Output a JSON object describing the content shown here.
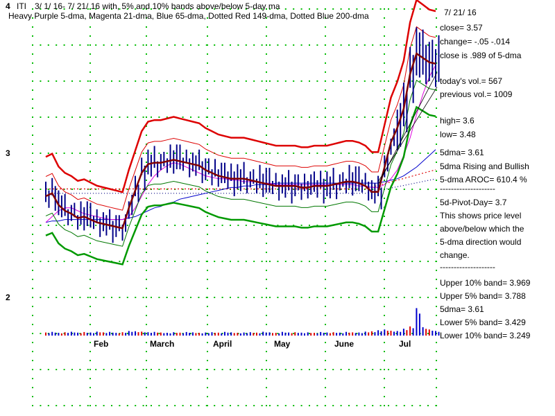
{
  "chart_data": {
    "type": "line",
    "ticker": "ITI",
    "title": "3/ 1/ 16- 7/ 21/ 16 with, 5% and 10% bands above/below 5-day ma",
    "subtitle": "Heavy Purple 5-dma, Magenta 21-dma, Blue 65-dma, Dotted Red 149-dma, Dotted Blue 200-dma",
    "y_ticks": [
      "4",
      "3",
      "2"
    ],
    "ylim": [
      2,
      4
    ],
    "x_month_labels": [
      "Feb",
      "March",
      "April",
      "May",
      "June",
      "Jul"
    ],
    "grid": "dotted green",
    "colors": {
      "upper_10": "#dd0000",
      "upper_5": "#dd0000",
      "dma5": "#800000",
      "lower_5": "#007700",
      "lower_10": "#009900",
      "dma21": "#dd00dd",
      "dma65": "#0000cc",
      "dma149": "#dd0000",
      "dma200": "#000080",
      "ohlc": "#000088",
      "vol_up": "#0000cc",
      "vol_down": "#dd0000",
      "grid": "#00bb00"
    },
    "date": "7/ 21/ 16",
    "close_line": "close= 3.57",
    "change_line": "change= -.05 -.014",
    "ratio_line": "close is .989 of 5-dma",
    "today_vol": "today's vol.= 567",
    "prev_vol": "previous vol.= 1009",
    "high": "high= 3.6",
    "low": "low= 3.48",
    "dma5_line": "5dma= 3.61",
    "trend": "5dma Rising and Bullish",
    "aroc": "5-dma AROC= 610.4 %",
    "sep": "--------------------",
    "pivot": "5d-Pivot-Day= 3.7",
    "pivot_note": [
      "This shows price level",
      "above/below which the",
      "5-dma direction would",
      "change."
    ],
    "upper10": "Upper 10% band= 3.969",
    "upper5": "Upper 5% band= 3.788",
    "dma5_2": "5dma= 3.61",
    "lower5": "Lower 5% band= 3.429",
    "lower10": "Lower 10% band= 3.249",
    "dma5_series": [
      2.7,
      2.72,
      2.64,
      2.6,
      2.58,
      2.55,
      2.56,
      2.54,
      2.52,
      2.51,
      2.5,
      2.49,
      2.48,
      2.62,
      2.74,
      2.86,
      2.92,
      2.93,
      2.93,
      2.94,
      2.95,
      2.94,
      2.93,
      2.92,
      2.91,
      2.88,
      2.86,
      2.84,
      2.83,
      2.82,
      2.82,
      2.82,
      2.81,
      2.8,
      2.79,
      2.78,
      2.77,
      2.77,
      2.77,
      2.77,
      2.76,
      2.76,
      2.77,
      2.77,
      2.77,
      2.78,
      2.79,
      2.8,
      2.8,
      2.79,
      2.77,
      2.73,
      2.73,
      2.9,
      3.07,
      3.17,
      3.3,
      3.54,
      3.68,
      3.65,
      3.62,
      3.61
    ],
    "dma21_series": [
      2.52,
      2.56,
      2.6,
      2.62,
      2.62,
      2.6,
      2.58,
      2.57,
      2.56,
      2.55,
      2.54,
      2.54,
      2.54,
      2.56,
      2.62,
      2.7,
      2.78,
      2.84,
      2.88,
      2.91,
      2.93,
      2.92,
      2.9,
      2.88,
      2.86,
      2.84,
      2.83,
      2.82,
      2.82,
      2.81,
      2.81,
      2.8,
      2.8,
      2.8,
      2.79,
      2.79,
      2.78,
      2.78,
      2.78,
      2.78,
      2.78,
      2.78,
      2.78,
      2.78,
      2.78,
      2.78,
      2.78,
      2.78,
      2.78,
      2.77,
      2.77,
      2.76,
      2.76,
      2.78,
      2.82,
      2.88,
      2.98,
      3.1,
      3.26,
      3.4,
      3.52,
      3.6
    ],
    "dma65_series": [
      2.52,
      2.53,
      2.53,
      2.54,
      2.54,
      2.54,
      2.54,
      2.54,
      2.54,
      2.54,
      2.54,
      2.54,
      2.54,
      2.55,
      2.56,
      2.58,
      2.6,
      2.62,
      2.63,
      2.65,
      2.66,
      2.68,
      2.69,
      2.7,
      2.71,
      2.72,
      2.73,
      2.74,
      2.75,
      2.76,
      2.76,
      2.77,
      2.77,
      2.78,
      2.78,
      2.78,
      2.79,
      2.79,
      2.79,
      2.79,
      2.79,
      2.79,
      2.79,
      2.79,
      2.79,
      2.79,
      2.79,
      2.79,
      2.79,
      2.79,
      2.79,
      2.79,
      2.79,
      2.8,
      2.81,
      2.82,
      2.84,
      2.87,
      2.9,
      2.94,
      2.98,
      3.02
    ],
    "volume": [
      20,
      24,
      18,
      22,
      25,
      19,
      23,
      20,
      26,
      21,
      24,
      18,
      22,
      30,
      28,
      26,
      22,
      24,
      20,
      18,
      22,
      19,
      23,
      21,
      18,
      20,
      22,
      19,
      24,
      21,
      18,
      20,
      22,
      19,
      25,
      21,
      18,
      24,
      20,
      22,
      19,
      21,
      18,
      23,
      20,
      22,
      19,
      24,
      21,
      20,
      26,
      28,
      35,
      40,
      32,
      30,
      45,
      60,
      180,
      55,
      40,
      30
    ]
  }
}
